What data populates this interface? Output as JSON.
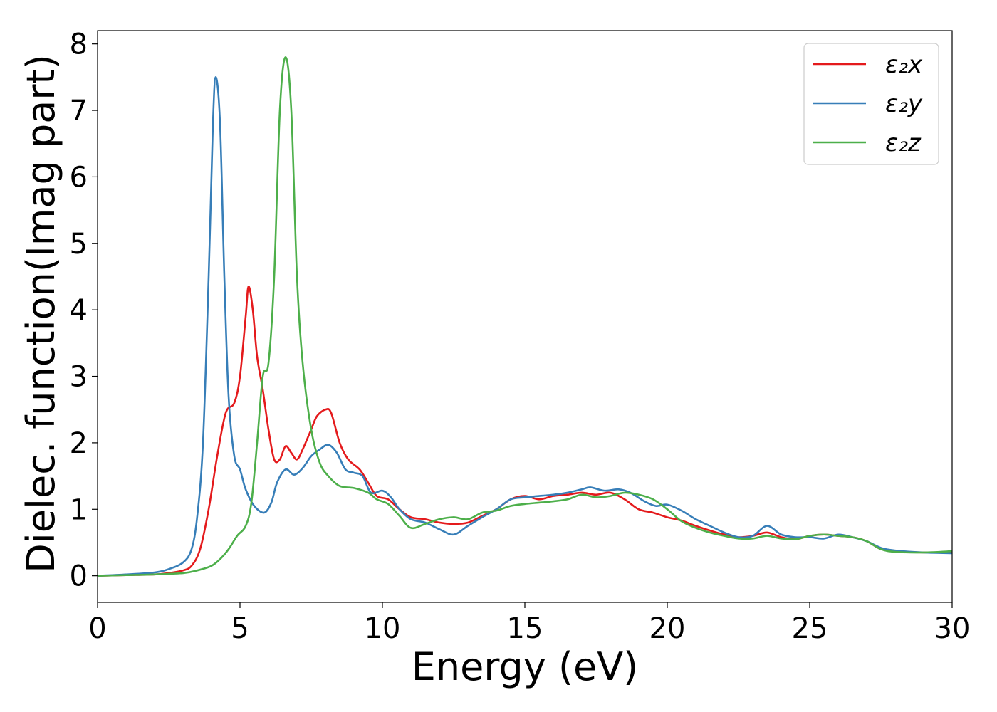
{
  "chart_data": {
    "type": "line",
    "title": "",
    "xlabel": "Energy (eV)",
    "ylabel": "Dielec. function(Imag part)",
    "xlim": [
      0,
      30
    ],
    "ylim": [
      -0.4,
      8.2
    ],
    "xticks": [
      0,
      5,
      10,
      15,
      20,
      25,
      30
    ],
    "yticks": [
      0,
      1,
      2,
      3,
      4,
      5,
      6,
      7,
      8
    ],
    "grid": false,
    "legend_position": "top-right",
    "series": [
      {
        "name": "ε₂x",
        "color": "#e41a1c",
        "points": [
          [
            0,
            0
          ],
          [
            1,
            0.01
          ],
          [
            2,
            0.02
          ],
          [
            2.5,
            0.04
          ],
          [
            3,
            0.08
          ],
          [
            3.3,
            0.15
          ],
          [
            3.6,
            0.4
          ],
          [
            3.9,
            1.0
          ],
          [
            4.2,
            1.8
          ],
          [
            4.5,
            2.45
          ],
          [
            4.8,
            2.6
          ],
          [
            5.0,
            3.0
          ],
          [
            5.2,
            3.9
          ],
          [
            5.3,
            4.35
          ],
          [
            5.45,
            4.0
          ],
          [
            5.6,
            3.3
          ],
          [
            5.8,
            2.8
          ],
          [
            6.0,
            2.2
          ],
          [
            6.2,
            1.75
          ],
          [
            6.4,
            1.75
          ],
          [
            6.6,
            1.95
          ],
          [
            6.8,
            1.85
          ],
          [
            7.0,
            1.75
          ],
          [
            7.2,
            1.9
          ],
          [
            7.5,
            2.2
          ],
          [
            7.7,
            2.4
          ],
          [
            8.0,
            2.5
          ],
          [
            8.2,
            2.45
          ],
          [
            8.5,
            2.0
          ],
          [
            8.8,
            1.75
          ],
          [
            9.2,
            1.6
          ],
          [
            9.5,
            1.4
          ],
          [
            9.8,
            1.2
          ],
          [
            10.2,
            1.15
          ],
          [
            10.6,
            1.0
          ],
          [
            11.0,
            0.88
          ],
          [
            11.5,
            0.85
          ],
          [
            12.0,
            0.8
          ],
          [
            12.5,
            0.78
          ],
          [
            13.0,
            0.8
          ],
          [
            13.5,
            0.9
          ],
          [
            14.0,
            1.0
          ],
          [
            14.5,
            1.15
          ],
          [
            15.0,
            1.2
          ],
          [
            15.5,
            1.15
          ],
          [
            16.0,
            1.2
          ],
          [
            16.5,
            1.22
          ],
          [
            17.0,
            1.25
          ],
          [
            17.5,
            1.22
          ],
          [
            18.0,
            1.25
          ],
          [
            18.5,
            1.15
          ],
          [
            19.0,
            1.0
          ],
          [
            19.5,
            0.95
          ],
          [
            20.0,
            0.88
          ],
          [
            20.5,
            0.83
          ],
          [
            21.0,
            0.75
          ],
          [
            21.5,
            0.68
          ],
          [
            22.0,
            0.62
          ],
          [
            22.5,
            0.58
          ],
          [
            23.0,
            0.6
          ],
          [
            23.5,
            0.65
          ],
          [
            24.0,
            0.58
          ],
          [
            24.5,
            0.55
          ],
          [
            25.0,
            0.6
          ],
          [
            25.5,
            0.62
          ],
          [
            26.0,
            0.6
          ],
          [
            26.5,
            0.58
          ],
          [
            27.0,
            0.52
          ],
          [
            27.5,
            0.4
          ],
          [
            28.0,
            0.37
          ],
          [
            29.0,
            0.35
          ],
          [
            30.0,
            0.36
          ]
        ]
      },
      {
        "name": "ε₂y",
        "color": "#377eb8",
        "points": [
          [
            0,
            0
          ],
          [
            1,
            0.02
          ],
          [
            2,
            0.05
          ],
          [
            2.5,
            0.1
          ],
          [
            3.0,
            0.2
          ],
          [
            3.3,
            0.4
          ],
          [
            3.5,
            0.9
          ],
          [
            3.7,
            2.0
          ],
          [
            3.9,
            4.5
          ],
          [
            4.05,
            6.8
          ],
          [
            4.15,
            7.5
          ],
          [
            4.3,
            6.8
          ],
          [
            4.45,
            4.5
          ],
          [
            4.6,
            2.7
          ],
          [
            4.8,
            1.8
          ],
          [
            5.0,
            1.6
          ],
          [
            5.2,
            1.3
          ],
          [
            5.5,
            1.05
          ],
          [
            5.85,
            0.95
          ],
          [
            6.1,
            1.1
          ],
          [
            6.3,
            1.4
          ],
          [
            6.6,
            1.6
          ],
          [
            6.9,
            1.52
          ],
          [
            7.2,
            1.62
          ],
          [
            7.5,
            1.8
          ],
          [
            7.8,
            1.9
          ],
          [
            8.1,
            1.97
          ],
          [
            8.4,
            1.85
          ],
          [
            8.7,
            1.6
          ],
          [
            9.0,
            1.55
          ],
          [
            9.3,
            1.5
          ],
          [
            9.6,
            1.25
          ],
          [
            10.0,
            1.28
          ],
          [
            10.3,
            1.18
          ],
          [
            10.6,
            1.0
          ],
          [
            11.0,
            0.85
          ],
          [
            11.5,
            0.8
          ],
          [
            12.0,
            0.7
          ],
          [
            12.5,
            0.62
          ],
          [
            13.0,
            0.75
          ],
          [
            13.5,
            0.88
          ],
          [
            14.0,
            1.0
          ],
          [
            14.5,
            1.15
          ],
          [
            15.0,
            1.18
          ],
          [
            15.5,
            1.2
          ],
          [
            16.0,
            1.22
          ],
          [
            16.5,
            1.25
          ],
          [
            17.0,
            1.3
          ],
          [
            17.3,
            1.33
          ],
          [
            17.8,
            1.28
          ],
          [
            18.3,
            1.3
          ],
          [
            18.7,
            1.25
          ],
          [
            19.2,
            1.12
          ],
          [
            19.6,
            1.05
          ],
          [
            20.0,
            1.07
          ],
          [
            20.5,
            0.98
          ],
          [
            21.0,
            0.85
          ],
          [
            21.5,
            0.75
          ],
          [
            22.0,
            0.65
          ],
          [
            22.5,
            0.58
          ],
          [
            23.0,
            0.6
          ],
          [
            23.5,
            0.75
          ],
          [
            24.0,
            0.62
          ],
          [
            24.5,
            0.58
          ],
          [
            25.0,
            0.58
          ],
          [
            25.5,
            0.56
          ],
          [
            26.0,
            0.62
          ],
          [
            26.5,
            0.58
          ],
          [
            27.0,
            0.52
          ],
          [
            27.5,
            0.42
          ],
          [
            28.0,
            0.38
          ],
          [
            29.0,
            0.35
          ],
          [
            30.0,
            0.34
          ]
        ]
      },
      {
        "name": "ε₂z",
        "color": "#4daf4a",
        "points": [
          [
            0,
            0
          ],
          [
            1,
            0.01
          ],
          [
            2,
            0.02
          ],
          [
            3,
            0.04
          ],
          [
            3.5,
            0.08
          ],
          [
            4.0,
            0.15
          ],
          [
            4.3,
            0.25
          ],
          [
            4.6,
            0.4
          ],
          [
            4.9,
            0.6
          ],
          [
            5.2,
            0.75
          ],
          [
            5.4,
            1.1
          ],
          [
            5.6,
            2.0
          ],
          [
            5.8,
            3.0
          ],
          [
            6.0,
            3.2
          ],
          [
            6.2,
            4.5
          ],
          [
            6.4,
            7.0
          ],
          [
            6.6,
            7.8
          ],
          [
            6.8,
            7.0
          ],
          [
            7.0,
            4.5
          ],
          [
            7.2,
            3.2
          ],
          [
            7.5,
            2.2
          ],
          [
            7.8,
            1.7
          ],
          [
            8.1,
            1.5
          ],
          [
            8.5,
            1.35
          ],
          [
            9.0,
            1.32
          ],
          [
            9.5,
            1.25
          ],
          [
            9.8,
            1.15
          ],
          [
            10.2,
            1.08
          ],
          [
            10.6,
            0.9
          ],
          [
            11.0,
            0.72
          ],
          [
            11.5,
            0.78
          ],
          [
            12.0,
            0.85
          ],
          [
            12.5,
            0.88
          ],
          [
            13.0,
            0.85
          ],
          [
            13.5,
            0.95
          ],
          [
            14.0,
            0.98
          ],
          [
            14.5,
            1.05
          ],
          [
            15.0,
            1.08
          ],
          [
            15.5,
            1.1
          ],
          [
            16.0,
            1.12
          ],
          [
            16.5,
            1.15
          ],
          [
            17.0,
            1.22
          ],
          [
            17.5,
            1.18
          ],
          [
            18.0,
            1.2
          ],
          [
            18.5,
            1.25
          ],
          [
            19.0,
            1.22
          ],
          [
            19.5,
            1.15
          ],
          [
            20.0,
            1.0
          ],
          [
            20.5,
            0.82
          ],
          [
            21.0,
            0.72
          ],
          [
            21.5,
            0.65
          ],
          [
            22.0,
            0.6
          ],
          [
            22.5,
            0.56
          ],
          [
            23.0,
            0.56
          ],
          [
            23.5,
            0.6
          ],
          [
            24.0,
            0.56
          ],
          [
            24.5,
            0.55
          ],
          [
            25.0,
            0.6
          ],
          [
            25.5,
            0.62
          ],
          [
            26.0,
            0.6
          ],
          [
            26.5,
            0.58
          ],
          [
            27.0,
            0.52
          ],
          [
            27.5,
            0.4
          ],
          [
            28.0,
            0.36
          ],
          [
            29.0,
            0.35
          ],
          [
            30.0,
            0.37
          ]
        ]
      }
    ]
  }
}
